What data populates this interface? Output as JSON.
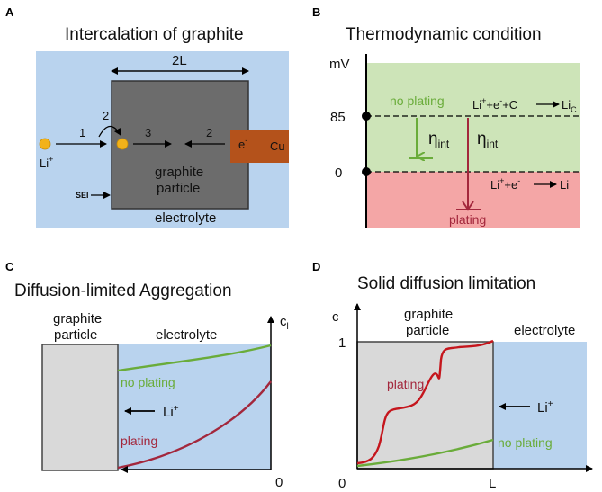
{
  "panel_a": {
    "letter": "A",
    "title": "Intercalation of graphite",
    "width_label": "2L",
    "step_1": "1",
    "step_2a": "2",
    "step_3": "3",
    "step_2b": "2",
    "li_label": "Li",
    "li_charge": "+",
    "electron_label": "e",
    "electron_charge": "-",
    "collector_label": "Cu",
    "particle_label_line1": "graphite",
    "particle_label_line2": "particle",
    "sei_label": "SEI",
    "electrolyte_label": "electrolyte",
    "colors": {
      "background": "#b9d3ee",
      "particle": "#6c6c6c",
      "copper": "#b4521b",
      "lithium": "#f2b21a"
    }
  },
  "panel_b": {
    "letter": "B",
    "title": "Thermodynamic condition",
    "axis_unit": "mV",
    "tick_85": "85",
    "tick_0": "0",
    "no_plating_label": "no plating",
    "plating_label": "plating",
    "eta_symbol": "η",
    "eta_subscript": "int",
    "reaction_upper_left": "Li",
    "reaction_upper_charge": "+",
    "reaction_upper_mid": "+e",
    "reaction_upper_minus": "-",
    "reaction_upper_tail": "+C",
    "reaction_upper_product": "Li",
    "reaction_upper_product_sub": "C",
    "reaction_lower_left": "Li",
    "reaction_lower_charge": "+",
    "reaction_lower_mid": "+e",
    "reaction_lower_minus": "-",
    "reaction_lower_product": "Li",
    "colors": {
      "green_zone": "#cde4b8",
      "red_zone": "#f4a6a6",
      "green_arrow": "#6aac3a",
      "red_arrow": "#a3273c"
    }
  },
  "panel_c": {
    "letter": "C",
    "title": "Diffusion-limited Aggregation",
    "particle_label_line1": "graphite",
    "particle_label_line2": "particle",
    "electrolyte_label": "electrolyte",
    "axis_symbol": "c",
    "axis_subscript": "l",
    "axis_zero": "0",
    "no_plating_label": "no plating",
    "li_label": "Li",
    "li_charge": "+",
    "plating_label": "plating"
  },
  "panel_d": {
    "letter": "D",
    "title": "Solid diffusion limitation",
    "axis_y_symbol": "c",
    "particle_label_line1": "graphite",
    "particle_label_line2": "particle",
    "electrolyte_label": "electrolyte",
    "tick_1": "1",
    "tick_0": "0",
    "tick_L": "L",
    "plating_label": "plating",
    "li_label": "Li",
    "li_charge": "+",
    "no_plating_label": "no plating"
  }
}
